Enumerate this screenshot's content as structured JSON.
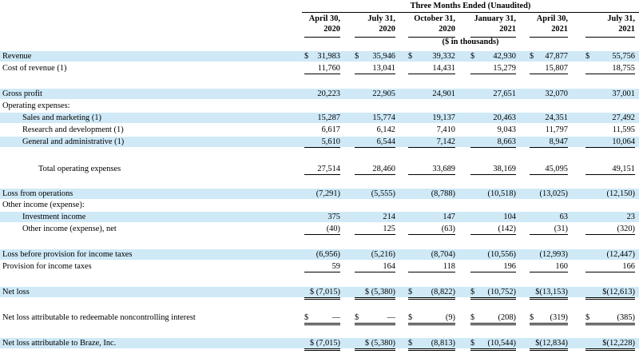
{
  "table": {
    "super_header": "Three Months Ended (Unaudited)",
    "units": "($ in thousands)",
    "columns": [
      {
        "line1": "April 30,",
        "line2": "2020"
      },
      {
        "line1": "July 31,",
        "line2": "2020"
      },
      {
        "line1": "October 31,",
        "line2": "2020"
      },
      {
        "line1": "January 31,",
        "line2": "2021"
      },
      {
        "line1": "April 30,",
        "line2": "2021"
      },
      {
        "line1": "July 31,",
        "line2": "2021"
      }
    ],
    "rows": [
      {
        "label": "Revenue",
        "values": [
          {
            "d": "$",
            "v": "31,983"
          },
          {
            "d": "$",
            "v": "35,946"
          },
          {
            "d": "$",
            "v": "39,332"
          },
          {
            "d": "$",
            "v": "42,930"
          },
          {
            "d": "$",
            "v": "47,877"
          },
          {
            "d": "$",
            "v": "55,756"
          }
        ]
      },
      {
        "label": "Cost of revenue (1)",
        "values": [
          {
            "v": "11,760"
          },
          {
            "v": "13,041"
          },
          {
            "v": "14,431"
          },
          {
            "v": "15,279"
          },
          {
            "v": "15,807"
          },
          {
            "v": "18,755"
          }
        ]
      },
      {
        "label": "Gross profit",
        "values": [
          {
            "v": "20,223"
          },
          {
            "v": "22,905"
          },
          {
            "v": "24,901"
          },
          {
            "v": "27,651"
          },
          {
            "v": "32,070"
          },
          {
            "v": "37,001"
          }
        ]
      },
      {
        "label": "Operating expenses:",
        "values": []
      },
      {
        "label": "Sales and marketing (1)",
        "values": [
          {
            "v": "15,287"
          },
          {
            "v": "15,774"
          },
          {
            "v": "19,137"
          },
          {
            "v": "20,463"
          },
          {
            "v": "24,351"
          },
          {
            "v": "27,492"
          }
        ]
      },
      {
        "label": "Research and development (1)",
        "values": [
          {
            "v": "6,617"
          },
          {
            "v": "6,142"
          },
          {
            "v": "7,410"
          },
          {
            "v": "9,043"
          },
          {
            "v": "11,797"
          },
          {
            "v": "11,595"
          }
        ]
      },
      {
        "label": "General and administrative (1)",
        "values": [
          {
            "v": "5,610"
          },
          {
            "v": "6,544"
          },
          {
            "v": "7,142"
          },
          {
            "v": "8,663"
          },
          {
            "v": "8,947"
          },
          {
            "v": "10,064"
          }
        ]
      },
      {
        "label": "Total operating expenses",
        "values": [
          {
            "v": "27,514"
          },
          {
            "v": "28,460"
          },
          {
            "v": "33,689"
          },
          {
            "v": "38,169"
          },
          {
            "v": "45,095"
          },
          {
            "v": "49,151"
          }
        ]
      },
      {
        "label": "Loss from operations",
        "values": [
          {
            "v": "(7,291)"
          },
          {
            "v": "(5,555)"
          },
          {
            "v": "(8,788)"
          },
          {
            "v": "(10,518)"
          },
          {
            "v": "(13,025)"
          },
          {
            "v": "(12,150)"
          }
        ]
      },
      {
        "label": "Other income (expense):",
        "values": []
      },
      {
        "label": "Investment income",
        "values": [
          {
            "v": "375"
          },
          {
            "v": "214"
          },
          {
            "v": "147"
          },
          {
            "v": "104"
          },
          {
            "v": "63"
          },
          {
            "v": "23"
          }
        ]
      },
      {
        "label": "Other income (expense), net",
        "values": [
          {
            "v": "(40)"
          },
          {
            "v": "125"
          },
          {
            "v": "(63)"
          },
          {
            "v": "(142)"
          },
          {
            "v": "(31)"
          },
          {
            "v": "(320)"
          }
        ]
      },
      {
        "label": "Loss before provision for income taxes",
        "values": [
          {
            "v": "(6,956)"
          },
          {
            "v": "(5,216)"
          },
          {
            "v": "(8,704)"
          },
          {
            "v": "(10,556)"
          },
          {
            "v": "(12,993)"
          },
          {
            "v": "(12,447)"
          }
        ]
      },
      {
        "label": "Provision for income taxes",
        "values": [
          {
            "v": "59"
          },
          {
            "v": "164"
          },
          {
            "v": "118"
          },
          {
            "v": "196"
          },
          {
            "v": "160"
          },
          {
            "v": "166"
          }
        ]
      },
      {
        "label": "Net loss",
        "values": [
          {
            "v": "$ (7,015)"
          },
          {
            "v": "$ (5,380)"
          },
          {
            "d": "$",
            "v": "(8,822)"
          },
          {
            "d": "$",
            "v": "(10,752)"
          },
          {
            "v": "$(13,153)"
          },
          {
            "v": "$(12,613)"
          }
        ]
      },
      {
        "label": "Net loss attributable to redeemable noncontrolling interest",
        "values": [
          {
            "d": "$",
            "v": "—"
          },
          {
            "d": "$",
            "v": "—"
          },
          {
            "d": "$",
            "v": "(9)"
          },
          {
            "d": "$",
            "v": "(208)"
          },
          {
            "d": "$",
            "v": "(319)"
          },
          {
            "d": "$",
            "v": "(385)"
          }
        ]
      },
      {
        "label": "Net loss attributable to Braze, Inc.",
        "values": [
          {
            "v": "$ (7,015)"
          },
          {
            "v": "$ (5,380)"
          },
          {
            "d": "$",
            "v": "(8,813)"
          },
          {
            "d": "$",
            "v": "(10,544)"
          },
          {
            "v": "$(12,834)"
          },
          {
            "v": "$(12,228)"
          }
        ]
      }
    ]
  }
}
